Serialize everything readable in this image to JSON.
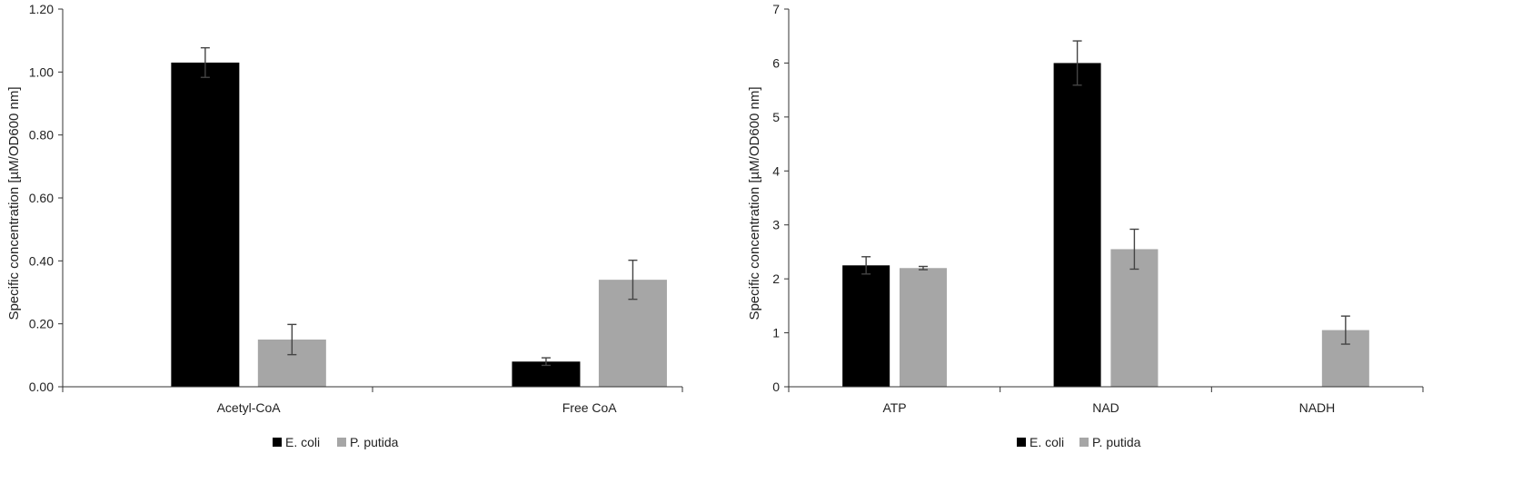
{
  "colors": {
    "series_1": "#000000",
    "series_2": "#a6a6a6",
    "axis": "#333333",
    "error_bar": "#444444"
  },
  "chart_data": [
    {
      "type": "bar",
      "categories": [
        "Acetyl-CoA",
        "Free CoA"
      ],
      "series": [
        {
          "name": "E. coli",
          "values": [
            1.03,
            0.08
          ],
          "errors": [
            0.047,
            0.012
          ]
        },
        {
          "name": "P. putida",
          "values": [
            0.15,
            0.34
          ],
          "errors": [
            0.048,
            0.062
          ]
        }
      ],
      "ylabel": "Specific concentration [µM/OD600 nm]",
      "xlabel": "",
      "ylim": [
        0,
        1.2
      ],
      "yticks": [
        "0.00",
        "0.20",
        "0.40",
        "0.60",
        "0.80",
        "1.00",
        "1.20"
      ],
      "grid": false,
      "legend_position": "bottom"
    },
    {
      "type": "bar",
      "categories": [
        "ATP",
        "NAD",
        "NADH"
      ],
      "series": [
        {
          "name": "E. coli",
          "values": [
            2.25,
            6.0,
            null
          ],
          "errors": [
            0.16,
            0.41,
            null
          ]
        },
        {
          "name": "P. putida",
          "values": [
            2.2,
            2.55,
            1.05
          ],
          "errors": [
            0.03,
            0.37,
            0.26
          ]
        }
      ],
      "ylabel": "Specific concentration [µM/OD600 nm]",
      "xlabel": "",
      "ylim": [
        0,
        7
      ],
      "yticks": [
        "0",
        "1",
        "2",
        "3",
        "4",
        "5",
        "6",
        "7"
      ],
      "grid": false,
      "legend_position": "bottom"
    }
  ]
}
